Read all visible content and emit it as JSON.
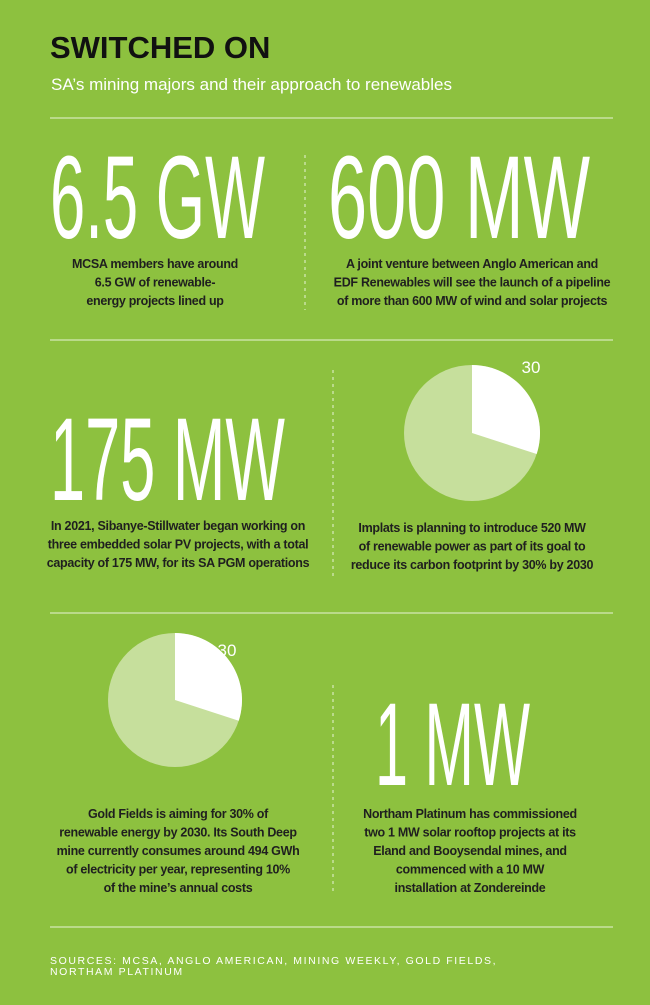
{
  "header": {
    "title": "SWITCHED ON",
    "subtitle": "SA’s mining majors and their approach to renewables"
  },
  "panels": [
    {
      "figure": "6.5 GW",
      "caption": [
        "MCSA members have around",
        "6.5 GW of renewable-",
        "energy projects lined up"
      ]
    },
    {
      "figure": "600 MW",
      "caption": [
        "A joint venture between Anglo American and",
        "EDF Renewables will see the launch of a pipeline",
        "of more than 600 MW of wind and solar projects"
      ]
    },
    {
      "figure": "175 MW",
      "caption": [
        "In 2021, Sibanye-Stillwater began working on",
        "three embedded solar PV projects, with a total",
        "capacity of 175 MW, for its SA PGM operations"
      ]
    },
    {
      "pie": {
        "value": 30
      },
      "caption": [
        "Implats is planning to introduce 520 MW",
        "of renewable power as part of its goal to",
        "reduce its carbon footprint by 30% by 2030"
      ]
    },
    {
      "pie": {
        "value": 30
      },
      "caption": [
        "Gold Fields is aiming for 30% of",
        "renewable energy by 2030. Its South Deep",
        "mine currently consumes around 494 GWh",
        "of electricity per year, representing 10%",
        "of the mine’s annual costs"
      ]
    },
    {
      "figure": "1 MW",
      "caption": [
        "Northam Platinum has commissioned",
        "two 1 MW solar rooftop projects at its",
        "Eland and Booysendal mines, and",
        "commenced with a 10 MW",
        "installation at Zondereinde"
      ]
    }
  ],
  "sources": [
    "SOURCES: MCSA, ANGLO AMERICAN, MINING WEEKLY, GOLD FIELDS,",
    "NORTHAM PLATINUM"
  ]
}
